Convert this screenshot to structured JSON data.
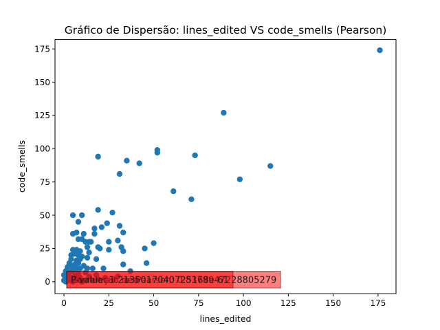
{
  "chart_data": {
    "type": "scatter",
    "title": "Gráfico de Dispersão: lines_edited VS code_smells (Pearson)",
    "xlabel": "lines_edited",
    "ylabel": "code_smells",
    "xlim": [
      -5,
      185
    ],
    "ylim": [
      -9,
      182
    ],
    "xticks": [
      0,
      25,
      50,
      75,
      100,
      125,
      150,
      175
    ],
    "yticks": [
      0,
      25,
      50,
      75,
      100,
      125,
      150,
      175
    ],
    "grid": false,
    "marker_color": "#1f77b4",
    "annotations": [
      {
        "text": "Correlação de Pearson: 0.8379947228805279",
        "box_color": "#ff0000",
        "box_alpha": 0.5
      },
      {
        "text": "P-value: 1.2135017040725168e-61",
        "box_color": "#ff0000",
        "box_alpha": 0.5
      }
    ],
    "points": [
      {
        "x": 176,
        "y": 174
      },
      {
        "x": 89,
        "y": 127
      },
      {
        "x": 115,
        "y": 87
      },
      {
        "x": 98,
        "y": 77
      },
      {
        "x": 73,
        "y": 95
      },
      {
        "x": 61,
        "y": 68
      },
      {
        "x": 71,
        "y": 62
      },
      {
        "x": 52,
        "y": 99
      },
      {
        "x": 52,
        "y": 97
      },
      {
        "x": 42,
        "y": 89
      },
      {
        "x": 35,
        "y": 91
      },
      {
        "x": 31,
        "y": 81
      },
      {
        "x": 19,
        "y": 94
      },
      {
        "x": 5,
        "y": 50
      },
      {
        "x": 10,
        "y": 50
      },
      {
        "x": 19,
        "y": 54
      },
      {
        "x": 27,
        "y": 52
      },
      {
        "x": 8,
        "y": 45
      },
      {
        "x": 31,
        "y": 42
      },
      {
        "x": 24,
        "y": 44
      },
      {
        "x": 21,
        "y": 41
      },
      {
        "x": 17,
        "y": 40
      },
      {
        "x": 5,
        "y": 36
      },
      {
        "x": 7,
        "y": 37
      },
      {
        "x": 11,
        "y": 36
      },
      {
        "x": 17,
        "y": 36
      },
      {
        "x": 33,
        "y": 37
      },
      {
        "x": 8,
        "y": 32
      },
      {
        "x": 10,
        "y": 32
      },
      {
        "x": 12,
        "y": 30
      },
      {
        "x": 14,
        "y": 30
      },
      {
        "x": 15,
        "y": 30
      },
      {
        "x": 19,
        "y": 26
      },
      {
        "x": 25,
        "y": 30
      },
      {
        "x": 30,
        "y": 31
      },
      {
        "x": 50,
        "y": 29
      },
      {
        "x": 13,
        "y": 26
      },
      {
        "x": 20,
        "y": 25
      },
      {
        "x": 25,
        "y": 24
      },
      {
        "x": 32,
        "y": 26
      },
      {
        "x": 33,
        "y": 23
      },
      {
        "x": 45,
        "y": 25
      },
      {
        "x": 5,
        "y": 24
      },
      {
        "x": 7,
        "y": 24
      },
      {
        "x": 9,
        "y": 23
      },
      {
        "x": 14,
        "y": 22
      },
      {
        "x": 4,
        "y": 20
      },
      {
        "x": 6,
        "y": 21
      },
      {
        "x": 8,
        "y": 20
      },
      {
        "x": 10,
        "y": 19
      },
      {
        "x": 4,
        "y": 17
      },
      {
        "x": 7,
        "y": 16
      },
      {
        "x": 9,
        "y": 17
      },
      {
        "x": 13,
        "y": 18
      },
      {
        "x": 18,
        "y": 17
      },
      {
        "x": 3,
        "y": 14
      },
      {
        "x": 6,
        "y": 13
      },
      {
        "x": 8,
        "y": 14
      },
      {
        "x": 46,
        "y": 14
      },
      {
        "x": 33,
        "y": 13
      },
      {
        "x": 2,
        "y": 11
      },
      {
        "x": 4,
        "y": 11
      },
      {
        "x": 7,
        "y": 10
      },
      {
        "x": 9,
        "y": 10
      },
      {
        "x": 11,
        "y": 12
      },
      {
        "x": 13,
        "y": 10
      },
      {
        "x": 16,
        "y": 10
      },
      {
        "x": 22,
        "y": 10
      },
      {
        "x": 1,
        "y": 8
      },
      {
        "x": 3,
        "y": 7
      },
      {
        "x": 5,
        "y": 8
      },
      {
        "x": 8,
        "y": 6
      },
      {
        "x": 12,
        "y": 7
      },
      {
        "x": 37,
        "y": 8
      },
      {
        "x": 0,
        "y": 5
      },
      {
        "x": 2,
        "y": 4
      },
      {
        "x": 4,
        "y": 3
      },
      {
        "x": 6,
        "y": 4
      },
      {
        "x": 9,
        "y": 3
      },
      {
        "x": 14,
        "y": 4
      },
      {
        "x": 18,
        "y": 5
      },
      {
        "x": 23,
        "y": 3
      },
      {
        "x": 30,
        "y": 4
      },
      {
        "x": 0,
        "y": 1
      },
      {
        "x": 1,
        "y": 0
      },
      {
        "x": 3,
        "y": 1
      },
      {
        "x": 5,
        "y": 0
      },
      {
        "x": 7,
        "y": 1
      },
      {
        "x": 10,
        "y": 0
      },
      {
        "x": 12,
        "y": 1
      },
      {
        "x": 16,
        "y": 1
      },
      {
        "x": 19,
        "y": 2
      },
      {
        "x": 24,
        "y": 1
      },
      {
        "x": 28,
        "y": 2
      },
      {
        "x": 35,
        "y": 1
      },
      {
        "x": 40,
        "y": 1
      }
    ]
  }
}
